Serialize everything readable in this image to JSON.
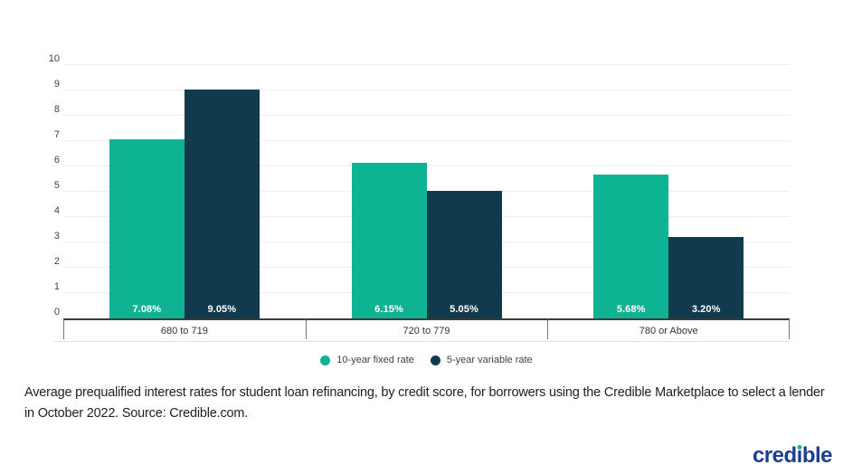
{
  "chart_data": {
    "type": "bar",
    "title": "",
    "categories": [
      "680 to 719",
      "720 to 779",
      "780 or Above"
    ],
    "series": [
      {
        "name": "10-year fixed rate",
        "color": "#0eb394",
        "values": [
          7.08,
          6.15,
          5.68
        ],
        "value_labels": [
          "7.08%",
          "6.15%",
          "5.68%"
        ]
      },
      {
        "name": "5-year variable rate",
        "color": "#113b4c",
        "values": [
          9.05,
          5.05,
          3.2
        ],
        "value_labels": [
          "9.05%",
          "5.05%",
          "3.20%"
        ]
      }
    ],
    "xlabel": "",
    "ylabel": "",
    "ylim": [
      0,
      10
    ],
    "yticks": [
      0,
      1,
      2,
      3,
      4,
      5,
      6,
      7,
      8,
      9,
      10
    ],
    "grid": true,
    "legend_position": "bottom",
    "bar_value_labels_inside_bottom": true
  },
  "caption": {
    "text": "Average prequalified interest rates for student loan refinancing, by credit score, for borrowers using the Credible Marketplace to select a lender in October 2022. Source: Credible.com."
  },
  "logo": {
    "prefix": "cred",
    "dotless_i": "ı",
    "suffix": "ble",
    "color": "#1d3d91",
    "dot_color": "#17b394"
  },
  "colors": {
    "background": "#ffffff",
    "axis": "#3c3c3c",
    "grid": "#ededed",
    "tick_text": "#424242",
    "category_text": "#333333",
    "value_label_text": "#ffffff",
    "separator": "#757575"
  }
}
